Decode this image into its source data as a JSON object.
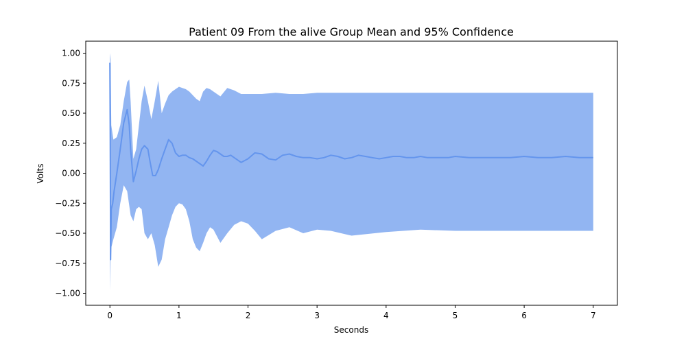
{
  "chart_data": {
    "type": "line",
    "title": "Patient 09 From the alive Group Mean and 95% Confidence",
    "xlabel": "Seconds",
    "ylabel": "Volts",
    "xlim": [
      -0.35,
      7.35
    ],
    "ylim": [
      -1.1,
      1.1
    ],
    "x_ticks": [
      0,
      1,
      2,
      3,
      4,
      5,
      6,
      7
    ],
    "y_ticks": [
      -1.0,
      -0.75,
      -0.5,
      -0.25,
      0.0,
      0.25,
      0.5,
      0.75,
      1.0
    ],
    "y_tick_labels": [
      "−1.00",
      "−0.75",
      "−0.50",
      "−0.25",
      "0.00",
      "0.25",
      "0.50",
      "0.75",
      "1.00"
    ],
    "grid": false,
    "colors": {
      "mean_line": "#6495ED",
      "confidence_band": "#6495ED"
    },
    "series": [
      {
        "kind": "mean",
        "x": [
          0.0,
          0.005,
          0.01,
          0.02,
          0.04,
          0.06,
          0.1,
          0.15,
          0.2,
          0.25,
          0.28,
          0.3,
          0.34,
          0.38,
          0.42,
          0.46,
          0.5,
          0.55,
          0.58,
          0.62,
          0.66,
          0.7,
          0.75,
          0.8,
          0.85,
          0.9,
          0.95,
          1.0,
          1.05,
          1.1,
          1.15,
          1.2,
          1.25,
          1.3,
          1.35,
          1.4,
          1.45,
          1.5,
          1.55,
          1.6,
          1.65,
          1.7,
          1.75,
          1.8,
          1.9,
          2.0,
          2.1,
          2.2,
          2.3,
          2.4,
          2.5,
          2.6,
          2.7,
          2.8,
          2.9,
          3.0,
          3.1,
          3.2,
          3.3,
          3.4,
          3.5,
          3.6,
          3.7,
          3.8,
          3.9,
          4.0,
          4.1,
          4.2,
          4.3,
          4.4,
          4.5,
          4.6,
          4.7,
          4.8,
          4.9,
          5.0,
          5.2,
          5.4,
          5.6,
          5.8,
          6.0,
          6.2,
          6.4,
          6.6,
          6.8,
          7.0
        ],
        "y": [
          0.92,
          0.3,
          -0.72,
          -0.3,
          -0.25,
          -0.15,
          0.0,
          0.2,
          0.42,
          0.53,
          0.4,
          0.2,
          -0.07,
          0.02,
          0.12,
          0.2,
          0.23,
          0.2,
          0.1,
          -0.02,
          -0.02,
          0.03,
          0.12,
          0.2,
          0.28,
          0.25,
          0.17,
          0.14,
          0.15,
          0.15,
          0.13,
          0.12,
          0.1,
          0.08,
          0.06,
          0.1,
          0.15,
          0.19,
          0.18,
          0.16,
          0.14,
          0.14,
          0.15,
          0.13,
          0.09,
          0.12,
          0.17,
          0.16,
          0.12,
          0.11,
          0.15,
          0.16,
          0.14,
          0.13,
          0.13,
          0.12,
          0.13,
          0.15,
          0.14,
          0.12,
          0.13,
          0.15,
          0.14,
          0.13,
          0.12,
          0.13,
          0.14,
          0.14,
          0.13,
          0.13,
          0.14,
          0.13,
          0.13,
          0.13,
          0.13,
          0.14,
          0.13,
          0.13,
          0.13,
          0.13,
          0.14,
          0.13,
          0.13,
          0.14,
          0.13,
          0.13
        ]
      },
      {
        "kind": "ci95_upper",
        "x": [
          0.0,
          0.01,
          0.02,
          0.05,
          0.1,
          0.15,
          0.2,
          0.25,
          0.28,
          0.3,
          0.34,
          0.38,
          0.42,
          0.46,
          0.5,
          0.55,
          0.6,
          0.65,
          0.7,
          0.75,
          0.8,
          0.85,
          0.9,
          0.95,
          1.0,
          1.05,
          1.1,
          1.15,
          1.2,
          1.25,
          1.3,
          1.35,
          1.4,
          1.45,
          1.5,
          1.6,
          1.7,
          1.8,
          1.9,
          2.0,
          2.2,
          2.4,
          2.6,
          2.8,
          3.0,
          3.5,
          4.0,
          4.5,
          5.0,
          5.5,
          6.0,
          6.5,
          7.0
        ],
        "y": [
          1.0,
          0.95,
          0.4,
          0.28,
          0.3,
          0.4,
          0.6,
          0.76,
          0.78,
          0.6,
          0.12,
          0.2,
          0.4,
          0.6,
          0.73,
          0.6,
          0.45,
          0.6,
          0.77,
          0.5,
          0.58,
          0.65,
          0.68,
          0.7,
          0.72,
          0.71,
          0.7,
          0.68,
          0.65,
          0.62,
          0.6,
          0.68,
          0.71,
          0.7,
          0.68,
          0.64,
          0.71,
          0.69,
          0.66,
          0.66,
          0.66,
          0.67,
          0.66,
          0.66,
          0.67,
          0.67,
          0.67,
          0.67,
          0.67,
          0.67,
          0.67,
          0.67,
          0.67
        ]
      },
      {
        "kind": "ci95_lower",
        "x": [
          0.0,
          0.01,
          0.02,
          0.05,
          0.1,
          0.15,
          0.2,
          0.25,
          0.3,
          0.34,
          0.38,
          0.42,
          0.46,
          0.5,
          0.55,
          0.6,
          0.65,
          0.7,
          0.75,
          0.8,
          0.85,
          0.9,
          0.95,
          1.0,
          1.05,
          1.1,
          1.15,
          1.2,
          1.25,
          1.3,
          1.35,
          1.4,
          1.45,
          1.5,
          1.6,
          1.7,
          1.8,
          1.9,
          2.0,
          2.1,
          2.2,
          2.4,
          2.6,
          2.8,
          3.0,
          3.2,
          3.5,
          4.0,
          4.5,
          5.0,
          5.5,
          6.0,
          6.5,
          7.0
        ],
        "y": [
          -0.98,
          -0.7,
          -0.62,
          -0.55,
          -0.45,
          -0.25,
          -0.1,
          -0.15,
          -0.35,
          -0.4,
          -0.3,
          -0.28,
          -0.3,
          -0.5,
          -0.55,
          -0.5,
          -0.6,
          -0.78,
          -0.72,
          -0.55,
          -0.45,
          -0.35,
          -0.28,
          -0.25,
          -0.26,
          -0.3,
          -0.4,
          -0.55,
          -0.62,
          -0.65,
          -0.58,
          -0.5,
          -0.45,
          -0.47,
          -0.58,
          -0.5,
          -0.43,
          -0.4,
          -0.42,
          -0.48,
          -0.55,
          -0.48,
          -0.45,
          -0.5,
          -0.47,
          -0.48,
          -0.52,
          -0.49,
          -0.47,
          -0.48,
          -0.48,
          -0.48,
          -0.48,
          -0.48
        ]
      }
    ]
  }
}
